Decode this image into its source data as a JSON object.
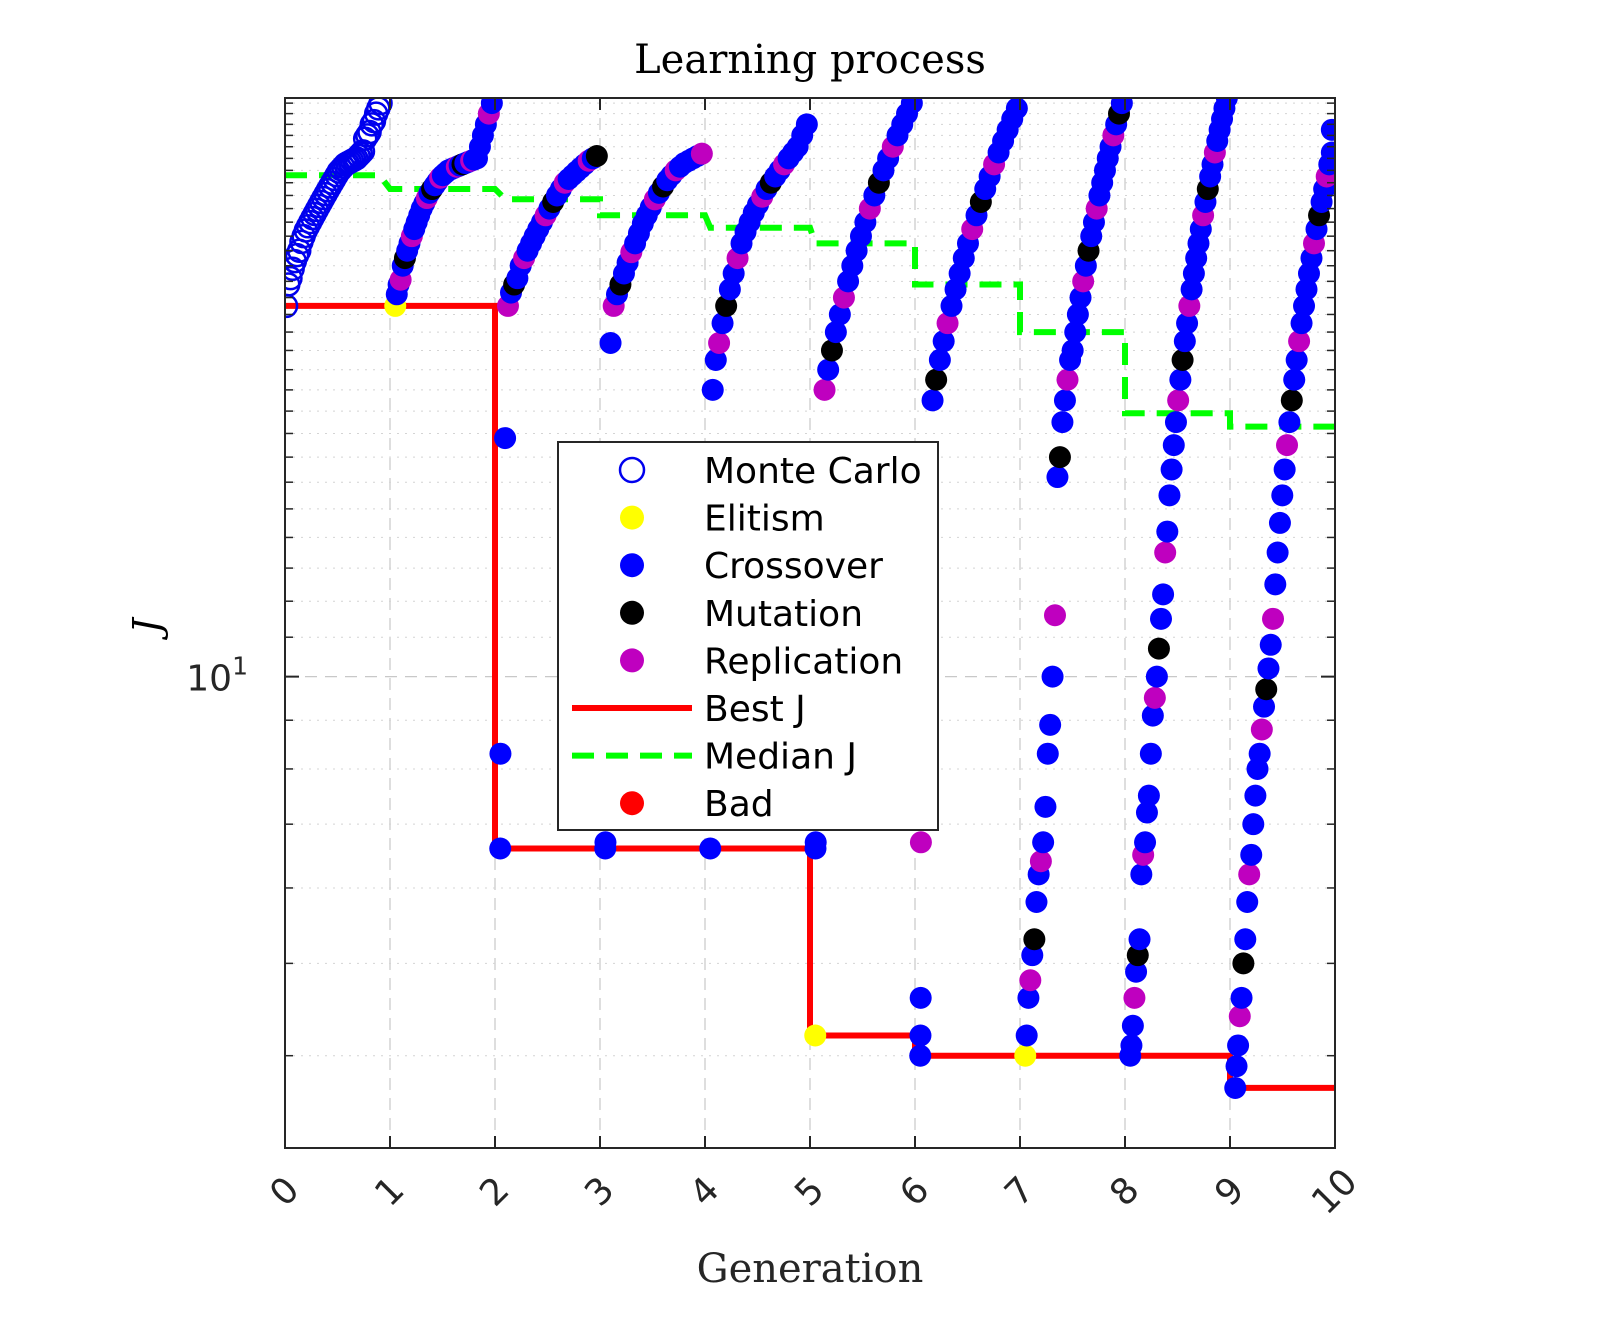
{
  "chart_data": {
    "type": "scatter",
    "title": "Learning process",
    "xlabel": "Generation",
    "ylabel": "J",
    "xlim": [
      0,
      10
    ],
    "ylim": [
      3.2,
      40.5
    ],
    "yscale": "log",
    "x_ticks": [
      0,
      1,
      2,
      3,
      4,
      5,
      6,
      7,
      8,
      9,
      10
    ],
    "x_tick_labels": [
      "0",
      "1",
      "2",
      "3",
      "4",
      "5",
      "6",
      "7",
      "8",
      "9",
      "10"
    ],
    "y_major_tick": {
      "value": 10,
      "label_base": "10",
      "label_exp": "1"
    },
    "grid": true,
    "legend_position": "center",
    "colors": {
      "monte_carlo": "#0000ee",
      "elitism": "#ffff00",
      "crossover": "#0000ff",
      "mutation": "#000000",
      "replication": "#bf00bf",
      "best": "#ff0000",
      "median": "#00ff00",
      "bad": "#ff0000"
    },
    "legend": [
      {
        "key": "monte_carlo",
        "label": "Monte Carlo",
        "marker": "open-circle"
      },
      {
        "key": "elitism",
        "label": "Elitism",
        "marker": "dot"
      },
      {
        "key": "crossover",
        "label": "Crossover",
        "marker": "dot"
      },
      {
        "key": "mutation",
        "label": "Mutation",
        "marker": "dot"
      },
      {
        "key": "replication",
        "label": "Replication",
        "marker": "dot"
      },
      {
        "key": "best",
        "label": "Best J",
        "marker": "solid-line"
      },
      {
        "key": "median",
        "label": "Median J",
        "marker": "dashed-line"
      },
      {
        "key": "bad",
        "label": "Bad",
        "marker": "dot"
      }
    ],
    "best_j": {
      "x": [
        0,
        2,
        2,
        5,
        5,
        6,
        6,
        9,
        9,
        10
      ],
      "y": [
        24.5,
        24.5,
        6.6,
        6.6,
        4.2,
        4.2,
        4.0,
        4.0,
        3.7,
        3.7
      ]
    },
    "median_j": {
      "x": [
        0,
        0.9,
        1,
        2,
        2.1,
        3,
        3,
        4,
        4.05,
        5,
        5.05,
        6,
        6,
        7,
        7,
        8,
        8,
        9,
        9,
        10
      ],
      "y": [
        33.6,
        33.6,
        32.5,
        32.5,
        31.7,
        31.7,
        30.5,
        30.5,
        29.6,
        29.6,
        28.5,
        28.5,
        25.8,
        25.8,
        23.0,
        23.0,
        18.9,
        18.9,
        18.3,
        18.3
      ]
    },
    "generations": [
      {
        "g": 0,
        "J": [
          24.5,
          25.8,
          26.2,
          26.8,
          27.3,
          27.7,
          28.0,
          28.6,
          29.0,
          29.4,
          29.7,
          30.0,
          30.3,
          30.6,
          30.9,
          31.2,
          31.5,
          31.8,
          32.1,
          32.4,
          32.7,
          33.0,
          33.3,
          33.6,
          33.9,
          34.1,
          34.3,
          34.5,
          34.6,
          34.7,
          34.8,
          34.9,
          35.0,
          35.2,
          35.4,
          35.6,
          36.7,
          37.0,
          37.3,
          38.0,
          38.3,
          39.0,
          39.5,
          40.0
        ]
      },
      {
        "g": 1,
        "J": [
          24.5,
          25.2,
          25.8,
          26.1,
          27.0,
          27.5,
          28.0,
          28.5,
          29.0,
          29.5,
          30.0,
          30.5,
          31.0,
          31.4,
          31.8,
          32.2,
          32.5,
          32.8,
          33.1,
          33.4,
          33.6,
          33.8,
          34.0,
          34.1,
          34.2,
          34.3,
          34.4,
          34.5,
          34.6,
          34.7,
          34.8,
          34.9,
          35.0,
          36.0,
          37.0,
          38.0,
          39.0,
          40.0
        ]
      },
      {
        "g": 2,
        "J": [
          6.6,
          8.3,
          17.8,
          24.5,
          25.3,
          25.8,
          26.2,
          27.0,
          27.5,
          28.0,
          28.5,
          29.0,
          29.5,
          30.0,
          30.5,
          31.0,
          31.5,
          32.0,
          32.5,
          33.0,
          33.3,
          33.6,
          33.9,
          34.2,
          34.5,
          34.8,
          35.0,
          35.2
        ]
      },
      {
        "g": 3,
        "J": [
          6.7,
          6.6,
          22.4,
          24.5,
          25.2,
          25.8,
          26.5,
          27.2,
          27.9,
          28.5,
          29.2,
          29.9,
          30.5,
          31.1,
          31.7,
          32.2,
          32.7,
          33.2,
          33.6,
          34.0,
          34.3,
          34.6,
          34.8,
          35.0,
          35.2,
          35.4
        ]
      },
      {
        "g": 4,
        "J": [
          6.6,
          20.0,
          21.5,
          22.4,
          23.5,
          24.5,
          25.5,
          26.5,
          27.5,
          28.5,
          29.3,
          30.0,
          30.7,
          31.3,
          31.9,
          32.5,
          33.0,
          33.5,
          34.0,
          34.5,
          35.0,
          35.5,
          36.0,
          37.0,
          38.0
        ]
      },
      {
        "g": 5,
        "J": [
          4.2,
          6.7,
          6.6,
          20.0,
          21.0,
          22.0,
          23.0,
          24.0,
          25.0,
          26.0,
          27.0,
          28.0,
          29.0,
          30.0,
          31.0,
          32.0,
          33.0,
          34.0,
          35.0,
          36.0,
          37.0,
          38.0,
          39.0,
          40.0
        ]
      },
      {
        "g": 6,
        "J": [
          4.0,
          4.2,
          4.6,
          6.7,
          19.5,
          20.5,
          21.5,
          22.5,
          23.5,
          24.5,
          25.5,
          26.5,
          27.5,
          28.5,
          29.5,
          30.5,
          31.5,
          32.5,
          33.5,
          34.5,
          35.5,
          36.5,
          37.5,
          38.5,
          39.5
        ]
      },
      {
        "g": 7,
        "J": [
          4.0,
          4.2,
          4.6,
          4.8,
          5.1,
          5.3,
          5.8,
          6.2,
          6.4,
          6.7,
          7.3,
          8.3,
          8.9,
          10.0,
          11.6,
          16.2,
          17.0,
          18.5,
          19.5,
          20.5,
          21.5,
          22.0,
          23.0,
          24.0,
          25.0,
          26.0,
          27.0,
          28.0,
          29.0,
          30.0,
          31.0,
          32.0,
          33.0,
          34.0,
          35.0,
          36.0,
          37.0,
          38.0,
          39.0,
          40.0
        ]
      },
      {
        "g": 8,
        "J": [
          4.0,
          4.1,
          4.3,
          4.6,
          4.9,
          5.1,
          5.3,
          6.2,
          6.5,
          6.7,
          7.2,
          7.5,
          8.3,
          9.1,
          9.5,
          10.0,
          10.7,
          11.5,
          12.2,
          13.5,
          14.2,
          15.5,
          16.5,
          17.5,
          18.5,
          19.5,
          20.5,
          21.5,
          22.5,
          23.5,
          24.5,
          25.5,
          26.5,
          27.5,
          28.5,
          29.5,
          30.5,
          31.5,
          32.5,
          33.5,
          34.5,
          35.5,
          36.5,
          37.5,
          38.5,
          39.5,
          40.5
        ]
      },
      {
        "g": 9,
        "J": [
          3.7,
          3.9,
          4.1,
          4.4,
          4.6,
          5.0,
          5.3,
          5.8,
          6.2,
          6.5,
          7.0,
          7.5,
          8.0,
          8.3,
          8.8,
          9.3,
          9.7,
          10.2,
          10.8,
          11.5,
          12.5,
          13.5,
          14.5,
          15.5,
          16.5,
          17.5,
          18.5,
          19.5,
          20.5,
          21.5,
          22.5,
          23.5,
          24.5,
          25.5,
          26.5,
          27.5,
          28.5,
          29.5,
          30.5,
          31.5,
          32.5,
          33.5,
          34.5,
          35.5
        ]
      },
      {
        "g": 10,
        "J": [
          37.5
        ]
      }
    ]
  }
}
